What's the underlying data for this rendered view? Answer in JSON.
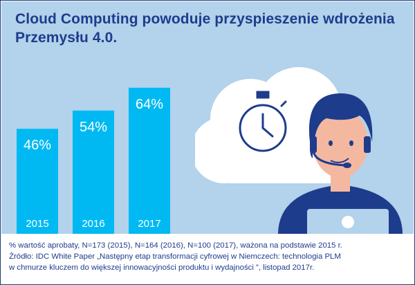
{
  "title": "Cloud Computing powoduje przyspieszenie wdrożenia Przemysłu 4.0.",
  "chart_data": {
    "type": "bar",
    "categories": [
      "2015",
      "2016",
      "2017"
    ],
    "values": [
      46,
      54,
      64
    ],
    "value_labels": [
      "46%",
      "54%",
      "64%"
    ],
    "unit": "%",
    "bar_color": "#00b9f2"
  },
  "colors": {
    "background": "#b3d2eb",
    "bar": "#00b9f2",
    "title": "#1e3c8c",
    "accent_dark": "#1e3c8c"
  },
  "illustration": {
    "icons": [
      "cloud-icon",
      "stopwatch-icon",
      "person-with-headset-icon",
      "laptop-icon"
    ]
  },
  "footnote": {
    "line1": "% wartość aprobaty, N=173 (2015), N=164 (2016), N=100 (2017), ważona na podstawie 2015 r.",
    "line2": "Źródło: IDC White Paper „Następny etap transformacji cyfrowej w Niemczech: technologia PLM",
    "line3": "w chmurze kluczem do większej innowacyjności produktu i wydajności ”, listopad 2017r."
  }
}
